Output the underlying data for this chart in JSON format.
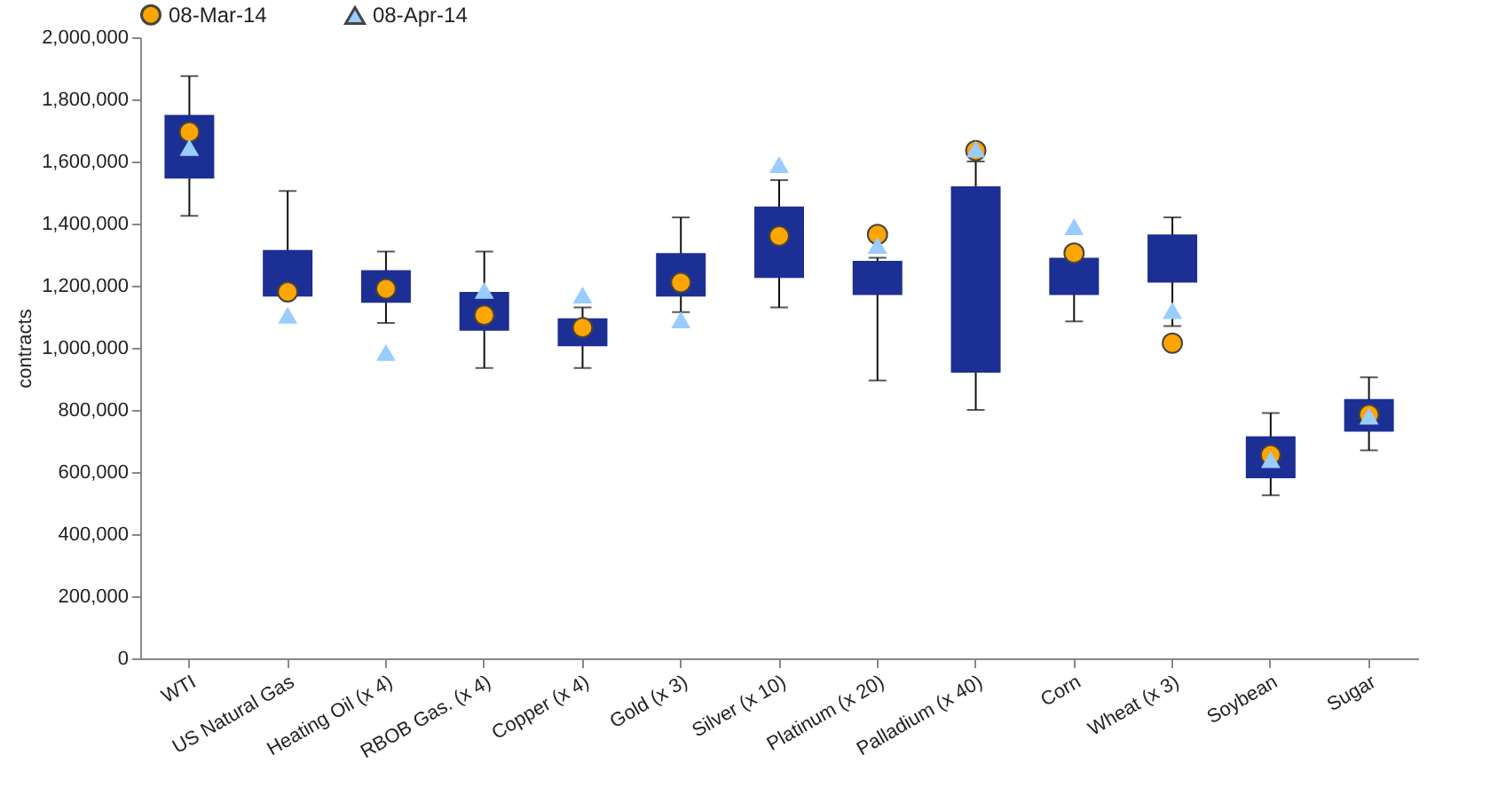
{
  "chart_data": {
    "type": "box",
    "ylabel": "contracts",
    "categories": [
      "WTI",
      "US Natural  Gas",
      "Heating Oil (x 4)",
      "RBOB Gas. (x 4)",
      "Copper (x 4)",
      "Gold (x 3)",
      "Silver (x 10)",
      "Platinum (x 20)",
      "Palladium (x 40)",
      "Corn",
      "Wheat (x 3)",
      "Soybean",
      "Sugar"
    ],
    "color": "#1c2f94",
    "boxes": [
      {
        "low": 1425000,
        "q1": 1545000,
        "q3": 1750000,
        "high": 1875000
      },
      {
        "low": 1165000,
        "q1": 1165000,
        "q3": 1315000,
        "high": 1505000
      },
      {
        "low": 1080000,
        "q1": 1145000,
        "q3": 1250000,
        "high": 1310000
      },
      {
        "low": 935000,
        "q1": 1055000,
        "q3": 1180000,
        "high": 1310000
      },
      {
        "low": 935000,
        "q1": 1005000,
        "q3": 1095000,
        "high": 1130000
      },
      {
        "low": 1115000,
        "q1": 1165000,
        "q3": 1305000,
        "high": 1420000
      },
      {
        "low": 1130000,
        "q1": 1225000,
        "q3": 1455000,
        "high": 1540000
      },
      {
        "low": 895000,
        "q1": 1170000,
        "q3": 1280000,
        "high": 1290000
      },
      {
        "low": 800000,
        "q1": 920000,
        "q3": 1520000,
        "high": 1600000
      },
      {
        "low": 1085000,
        "q1": 1170000,
        "q3": 1290000,
        "high": 1300000
      },
      {
        "low": 1070000,
        "q1": 1210000,
        "q3": 1365000,
        "high": 1420000
      },
      {
        "low": 525000,
        "q1": 580000,
        "q3": 715000,
        "high": 790000
      },
      {
        "low": 670000,
        "q1": 730000,
        "q3": 835000,
        "high": 905000
      }
    ],
    "series": [
      {
        "name": "08-Mar-14",
        "type": "scatter",
        "marker": "circle",
        "color": "#ffa500",
        "x": [
          "WTI",
          "US Natural  Gas",
          "Heating Oil (x 4)",
          "RBOB Gas. (x 4)",
          "Copper (x 4)",
          "Gold (x 3)",
          "Silver (x 10)",
          "Platinum (x 20)",
          "Palladium (x 40)",
          "Corn",
          "Wheat (x 3)",
          "Soybean",
          "Sugar"
        ],
        "values": [
          1695000,
          1180000,
          1190000,
          1105000,
          1065000,
          1210000,
          1360000,
          1365000,
          1635000,
          1305000,
          1015000,
          655000,
          785000
        ]
      },
      {
        "name": "08-Apr-14",
        "type": "scatter",
        "marker": "triangle",
        "color": "#99ccff",
        "x": [
          "WTI",
          "US Natural  Gas",
          "Heating Oil (x 4)",
          "RBOB Gas. (x 4)",
          "Copper (x 4)",
          "Gold (x 3)",
          "Silver (x 10)",
          "Platinum (x 20)",
          "Palladium (x 40)",
          "Corn",
          "Wheat (x 3)",
          "Soybean",
          "Sugar"
        ],
        "values": [
          1645000,
          1105000,
          985000,
          1185000,
          1170000,
          1090000,
          1590000,
          1330000,
          1640000,
          1390000,
          1120000,
          640000,
          780000
        ]
      }
    ],
    "ylim": [
      0,
      2000000
    ],
    "yticks": [
      0,
      {
        "value": 200000,
        "label": "200,000"
      },
      {
        "value": 400000,
        "label": "400,000"
      },
      {
        "value": 600000,
        "label": "600,000"
      },
      {
        "value": 800000,
        "label": "800,000"
      },
      {
        "value": 1000000,
        "label": "1,000,000"
      },
      {
        "value": 1200000,
        "label": "1,200,000"
      },
      {
        "value": 1400000,
        "label": "1,400,000"
      },
      {
        "value": 1600000,
        "label": "1,600,000"
      },
      {
        "value": 1800000,
        "label": "1,800,000"
      },
      {
        "value": 2000000,
        "label": "2,000,000"
      }
    ],
    "grid": false,
    "legend": "top"
  }
}
